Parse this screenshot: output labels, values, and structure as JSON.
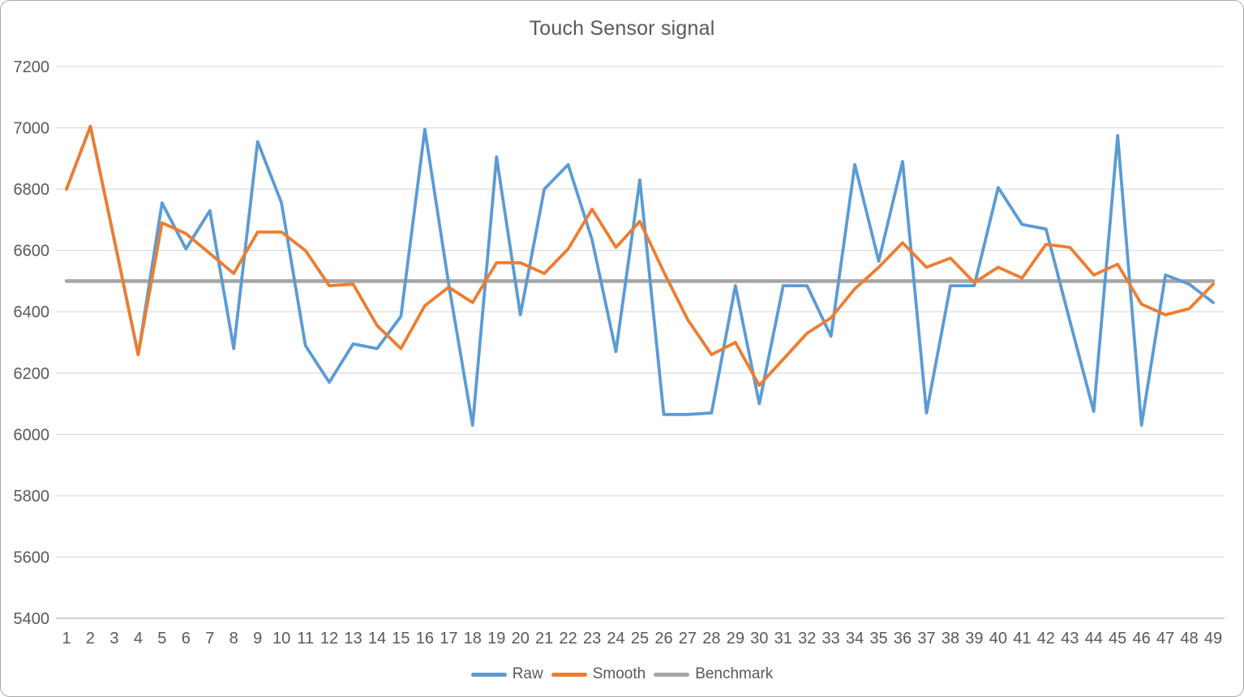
{
  "chart_data": {
    "type": "line",
    "title": "Touch Sensor signal",
    "x_labels": [
      "1",
      "2",
      "3",
      "4",
      "5",
      "6",
      "7",
      "8",
      "9",
      "10",
      "11",
      "12",
      "13",
      "14",
      "15",
      "16",
      "17",
      "18",
      "19",
      "20",
      "21",
      "22",
      "23",
      "24",
      "25",
      "26",
      "27",
      "28",
      "29",
      "30",
      "31",
      "32",
      "33",
      "34",
      "35",
      "36",
      "37",
      "38",
      "39",
      "40",
      "41",
      "42",
      "43",
      "44",
      "45",
      "46",
      "47",
      "48",
      "49"
    ],
    "series": [
      {
        "name": "Raw",
        "color": "#5B9BD5",
        "values": [
          6800,
          7005,
          6635,
          6260,
          6755,
          6605,
          6730,
          6280,
          6955,
          6755,
          6290,
          6170,
          6295,
          6280,
          6385,
          6995,
          6490,
          6030,
          6905,
          6390,
          6800,
          6880,
          6635,
          6270,
          6830,
          6065,
          6065,
          6070,
          6485,
          6100,
          6485,
          6485,
          6320,
          6880,
          6565,
          6890,
          6070,
          6485,
          6485,
          6805,
          6685,
          6670,
          6370,
          6075,
          6975,
          6030,
          6520,
          6490,
          6430
        ]
      },
      {
        "name": "Smooth",
        "color": "#ED7D31",
        "values": [
          6800,
          7005,
          6635,
          6260,
          6690,
          6655,
          6590,
          6525,
          6660,
          6660,
          6600,
          6485,
          6490,
          6355,
          6280,
          6420,
          6480,
          6430,
          6560,
          6560,
          6525,
          6605,
          6735,
          6610,
          6695,
          6530,
          6375,
          6260,
          6300,
          6160,
          6245,
          6330,
          6380,
          6475,
          6545,
          6625,
          6545,
          6575,
          6495,
          6545,
          6510,
          6620,
          6610,
          6520,
          6555,
          6425,
          6390,
          6410,
          6490
        ]
      },
      {
        "name": "Benchmark",
        "color": "#A6A6A6",
        "constant": 6500
      }
    ],
    "ylim": [
      5400,
      7200
    ],
    "ytick_step": 200,
    "y_tick_labels": [
      "5400",
      "5600",
      "5800",
      "6000",
      "6200",
      "6400",
      "6600",
      "6800",
      "7000",
      "7200"
    ],
    "grid": true,
    "legend_position": "bottom",
    "text_color": "#595959",
    "gridline_color": "#D9D9D9",
    "axisline_color": "#BFBFBF"
  }
}
